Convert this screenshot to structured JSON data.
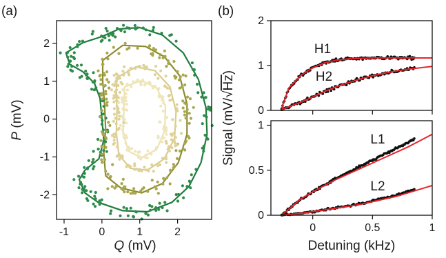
{
  "panels": {
    "a": {
      "label": "(a)"
    },
    "b": {
      "label": "(b)"
    }
  },
  "chart_data": [
    {
      "id": "phase-space",
      "type": "scatter",
      "panel": "(a)",
      "xlabel_italic": "Q",
      "xlabel_unit": " (mV)",
      "ylabel_italic": "P",
      "ylabel_unit": " (mV)",
      "xlim": [
        -1.2,
        2.9
      ],
      "ylim": [
        -2.65,
        2.6
      ],
      "xticks": [
        -1,
        0,
        1,
        2
      ],
      "xtick_labels": [
        "-1",
        "0",
        "1",
        "2"
      ],
      "yticks": [
        -2,
        -1,
        0,
        1,
        2
      ],
      "ytick_labels": [
        "-2",
        "-1",
        "0",
        "1",
        "2"
      ],
      "contours": [
        {
          "color": "#1e7b3c",
          "points": [
            [
              0.0,
              2.18
            ],
            [
              0.45,
              2.38
            ],
            [
              1.0,
              2.42
            ],
            [
              1.6,
              2.22
            ],
            [
              2.15,
              1.75
            ],
            [
              2.55,
              1.05
            ],
            [
              2.75,
              0.3
            ],
            [
              2.78,
              -0.4
            ],
            [
              2.62,
              -1.15
            ],
            [
              2.3,
              -1.78
            ],
            [
              1.85,
              -2.2
            ],
            [
              1.2,
              -2.45
            ],
            [
              0.55,
              -2.42
            ],
            [
              -0.1,
              -2.2
            ],
            [
              -0.45,
              -1.95
            ],
            [
              -0.6,
              -1.6
            ],
            [
              -0.45,
              -1.35
            ],
            [
              -0.08,
              -1.05
            ],
            [
              0.05,
              -0.55
            ],
            [
              0.0,
              0.0
            ],
            [
              -0.05,
              0.55
            ],
            [
              -0.2,
              0.95
            ],
            [
              -0.5,
              1.25
            ],
            [
              -0.85,
              1.45
            ],
            [
              -0.95,
              1.75
            ],
            [
              -0.5,
              2.02
            ],
            [
              0.0,
              2.18
            ]
          ]
        },
        {
          "color": "#8c8c2e",
          "points": [
            [
              0.02,
              1.55
            ],
            [
              0.55,
              1.95
            ],
            [
              1.15,
              1.92
            ],
            [
              1.65,
              1.65
            ],
            [
              2.05,
              1.15
            ],
            [
              2.25,
              0.4
            ],
            [
              2.25,
              -0.4
            ],
            [
              2.02,
              -1.15
            ],
            [
              1.6,
              -1.7
            ],
            [
              1.05,
              -1.95
            ],
            [
              0.5,
              -1.82
            ],
            [
              0.1,
              -1.5
            ],
            [
              0.05,
              -0.9
            ],
            [
              0.1,
              -0.3
            ],
            [
              0.07,
              0.4
            ],
            [
              0.02,
              1.0
            ],
            [
              0.02,
              1.55
            ]
          ]
        },
        {
          "color": "#d9cc8a",
          "points": [
            [
              0.4,
              1.1
            ],
            [
              0.9,
              1.38
            ],
            [
              1.4,
              1.28
            ],
            [
              1.8,
              0.85
            ],
            [
              1.96,
              0.2
            ],
            [
              1.92,
              -0.5
            ],
            [
              1.65,
              -1.05
            ],
            [
              1.2,
              -1.35
            ],
            [
              0.75,
              -1.3
            ],
            [
              0.45,
              -0.95
            ],
            [
              0.38,
              -0.35
            ],
            [
              0.4,
              0.25
            ],
            [
              0.38,
              0.75
            ],
            [
              0.4,
              1.1
            ]
          ]
        },
        {
          "color": "#ece2b2",
          "points": [
            [
              0.6,
              0.85
            ],
            [
              1.05,
              1.02
            ],
            [
              1.45,
              0.82
            ],
            [
              1.68,
              0.35
            ],
            [
              1.66,
              -0.3
            ],
            [
              1.45,
              -0.8
            ],
            [
              1.05,
              -1.02
            ],
            [
              0.7,
              -0.85
            ],
            [
              0.56,
              -0.35
            ],
            [
              0.58,
              0.25
            ],
            [
              0.6,
              0.85
            ]
          ]
        }
      ],
      "scatter_sets": [
        {
          "color": "#2e8b4a",
          "contour": 0,
          "count": 190,
          "jitter": 0.2
        },
        {
          "color": "#a8a64e",
          "contour": 1,
          "count": 150,
          "jitter": 0.2
        },
        {
          "color": "#ded29a",
          "contour": 2,
          "count": 140,
          "jitter": 0.18
        },
        {
          "color": "#efe6bd",
          "contour": 3,
          "count": 100,
          "jitter": 0.15
        }
      ]
    },
    {
      "id": "signal-high",
      "type": "line",
      "panel": "(b) upper",
      "xlim": [
        -0.35,
        1.0
      ],
      "ylim": [
        0,
        2
      ],
      "yticks": [
        0,
        1,
        2
      ],
      "ytick_labels": [
        "0",
        "1",
        "2"
      ],
      "xticks": [
        0,
        0.5,
        1
      ],
      "show_xtick_labels": false,
      "series": [
        {
          "name": "H1",
          "fit_color": "#e8242a",
          "points_color": "#111111",
          "fit": {
            "x": [
              -0.26,
              -0.2,
              -0.1,
              0.0,
              0.1,
              0.2,
              0.3,
              0.4,
              0.5,
              0.6,
              0.7,
              0.8,
              0.9,
              1.0
            ],
            "y": [
              0.05,
              0.5,
              0.78,
              0.95,
              1.06,
              1.12,
              1.15,
              1.16,
              1.17,
              1.17,
              1.17,
              1.17,
              1.17,
              1.17
            ]
          },
          "data_x_range": [
            -0.26,
            0.85
          ],
          "data_count": 150,
          "data_noise": 0.035
        },
        {
          "name": "H2",
          "fit_color": "#e8242a",
          "points_color": "#111111",
          "fit": {
            "x": [
              -0.26,
              -0.1,
              0.0,
              0.1,
              0.2,
              0.3,
              0.4,
              0.5,
              0.6,
              0.7,
              0.8,
              0.9,
              1.0
            ],
            "y": [
              0.02,
              0.18,
              0.3,
              0.42,
              0.53,
              0.62,
              0.7,
              0.77,
              0.83,
              0.88,
              0.92,
              0.95,
              0.98
            ]
          },
          "data_x_range": [
            -0.26,
            0.85
          ],
          "data_count": 130,
          "data_noise": 0.045
        }
      ]
    },
    {
      "id": "signal-low",
      "type": "line",
      "panel": "(b) lower",
      "xlim": [
        -0.35,
        1.0
      ],
      "ylim": [
        0,
        1.05
      ],
      "yticks": [
        0,
        0.5,
        1
      ],
      "ytick_labels": [
        "0",
        "0.5",
        "1"
      ],
      "xticks": [
        0,
        0.5,
        1
      ],
      "xtick_labels": [
        "0",
        "0.5",
        "1"
      ],
      "show_xtick_labels": true,
      "series": [
        {
          "name": "L1",
          "fit_color": "#e8242a",
          "points_color": "#111111",
          "fit": {
            "x": [
              -0.26,
              -0.1,
              0.0,
              0.1,
              0.2,
              0.3,
              0.4,
              0.5,
              0.6,
              0.7,
              0.8,
              0.9,
              1.0
            ],
            "y": [
              0.0,
              0.18,
              0.26,
              0.33,
              0.4,
              0.46,
              0.52,
              0.58,
              0.64,
              0.7,
              0.76,
              0.83,
              0.9
            ]
          },
          "data_x_range": [
            -0.26,
            0.85
          ],
          "data_count": 150,
          "data_noise": 0.015,
          "data_boost": 0.06
        },
        {
          "name": "L2",
          "fit_color": "#e8242a",
          "points_color": "#111111",
          "fit": {
            "x": [
              -0.26,
              -0.1,
              0.0,
              0.1,
              0.2,
              0.3,
              0.4,
              0.5,
              0.6,
              0.7,
              0.8,
              0.9,
              1.0
            ],
            "y": [
              0.0,
              0.02,
              0.04,
              0.06,
              0.08,
              0.1,
              0.12,
              0.15,
              0.18,
              0.21,
              0.25,
              0.29,
              0.33
            ]
          },
          "data_x_range": [
            -0.26,
            0.85
          ],
          "data_count": 130,
          "data_noise": 0.012,
          "data_boost": 0.02
        }
      ]
    }
  ],
  "shared_axes_b": {
    "xlabel": "Detuning (kHz)",
    "ylabel_prefix": "Signal (mV/√",
    "ylabel_overline": "Hz",
    "ylabel_suffix": ")"
  }
}
